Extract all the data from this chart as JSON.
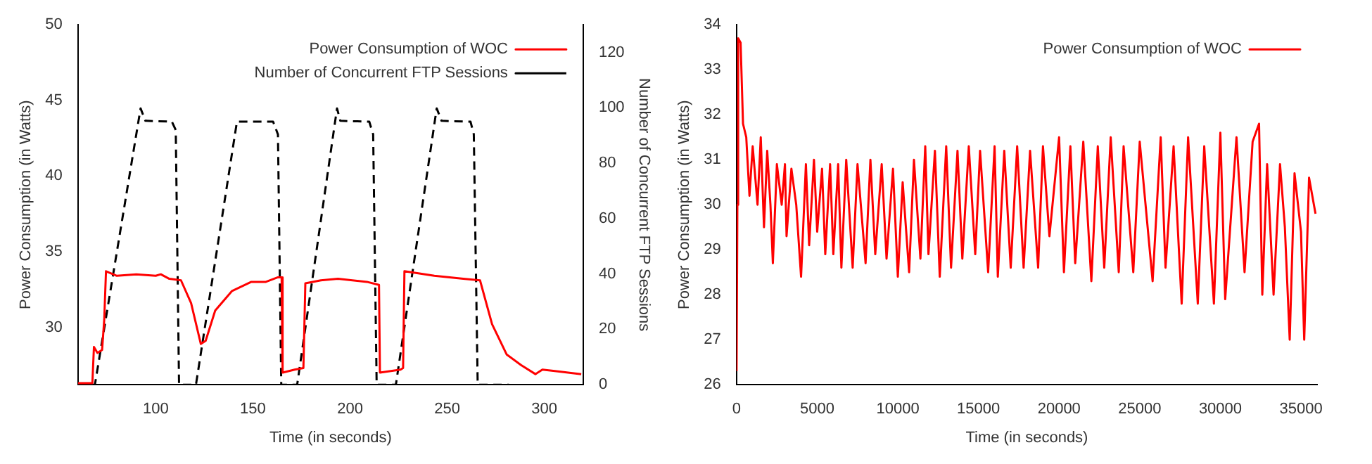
{
  "chart_data": [
    {
      "type": "line",
      "xlabel": "Time (in seconds)",
      "ylabel": "Power Consumption (in Watts)",
      "y2label": "Number of Concurrent FTP Sessions",
      "xlim": [
        60,
        320
      ],
      "xticks": [
        100,
        150,
        200,
        250,
        300
      ],
      "ylim": [
        26.2,
        50
      ],
      "yticks": [
        30,
        35,
        40,
        45,
        50
      ],
      "y2lim": [
        0,
        130
      ],
      "y2ticks": [
        0,
        20,
        40,
        60,
        80,
        100,
        120
      ],
      "grid": false,
      "legend": "top right",
      "marker": "none",
      "series": [
        {
          "name": "Power Consumption of WOC",
          "color": "#ff0000",
          "line_style": "solid",
          "x": [
            60,
            67.4,
            68.2,
            70,
            72.4,
            73.5,
            74.4,
            80,
            90,
            100,
            102.6,
            107,
            113,
            118.2,
            123.2,
            125.7,
            130.6,
            139.3,
            149.2,
            156.7,
            162.9,
            164.8,
            165.3,
            171.5,
            176,
            177,
            185,
            193.8,
            208.7,
            214.9,
            215.4,
            226,
            227.3,
            228,
            243.4,
            258.3,
            266.9,
            273.1,
            280.6,
            288,
            295.4,
            299,
            305.4,
            319
          ],
          "values": [
            26.3,
            26.3,
            28.7,
            28.3,
            28.5,
            30.5,
            33.7,
            33.4,
            33.5,
            33.4,
            33.5,
            33.2,
            33.1,
            31.6,
            28.9,
            29.1,
            31.1,
            32.4,
            33,
            33,
            33.3,
            33.3,
            27,
            27.2,
            27.3,
            32.9,
            33.1,
            33.2,
            33,
            32.8,
            27,
            27.2,
            27.3,
            33.7,
            33.4,
            33.2,
            33.1,
            30.2,
            28.2,
            27.5,
            26.9,
            27.2,
            27.1,
            26.9
          ]
        },
        {
          "name": "Number of Concurrent FTP Sessions",
          "color": "#000000",
          "line_style": "dashed",
          "axis": "y2",
          "x": [
            60,
            68.7,
            92.2,
            94.7,
            108.3,
            110.3,
            112,
            120.7,
            141.8,
            160.4,
            162.9,
            164.6,
            172.8,
            193.3,
            195,
            209.9,
            211.9,
            213.7,
            223.6,
            244.6,
            247.1,
            262,
            263.7,
            265.7,
            281.8
          ],
          "values": [
            0,
            0,
            99.8,
            95.3,
            95,
            92,
            0,
            0,
            95,
            95,
            90.4,
            0,
            0,
            99.8,
            95.3,
            95,
            90.4,
            0,
            0,
            99.8,
            95.3,
            95,
            90.4,
            0,
            0
          ]
        }
      ]
    },
    {
      "type": "line",
      "xlabel": "Time (in seconds)",
      "ylabel": "Power Consumption (in Watts)",
      "xlim": [
        0,
        36000
      ],
      "xticks": [
        0,
        5000,
        10000,
        15000,
        20000,
        25000,
        30000,
        35000
      ],
      "ylim": [
        26,
        34
      ],
      "yticks": [
        26,
        27,
        28,
        29,
        30,
        31,
        32,
        33,
        34
      ],
      "grid": false,
      "legend": "top right",
      "marker": "none",
      "series": [
        {
          "name": "Power Consumption of WOC",
          "color": "#ff0000",
          "line_style": "solid",
          "x": [
            0,
            50,
            100,
            250,
            400,
            600,
            800,
            1000,
            1300,
            1500,
            1700,
            1900,
            2100,
            2250,
            2500,
            2800,
            3000,
            3100,
            3400,
            3700,
            4000,
            4300,
            4500,
            4800,
            5000,
            5300,
            5500,
            5800,
            6000,
            6300,
            6500,
            6800,
            7200,
            7500,
            8000,
            8300,
            8600,
            9000,
            9300,
            9700,
            10000,
            10300,
            10700,
            11000,
            11400,
            11700,
            11900,
            12300,
            12600,
            13000,
            13300,
            13700,
            14000,
            14400,
            14800,
            15100,
            15600,
            16000,
            16200,
            16600,
            17000,
            17400,
            17800,
            18200,
            18700,
            19000,
            19400,
            20000,
            20300,
            20700,
            21000,
            21500,
            22000,
            22400,
            22800,
            23200,
            23700,
            24000,
            24600,
            25000,
            25800,
            26300,
            26600,
            27100,
            27600,
            28000,
            28600,
            29000,
            29600,
            30000,
            30300,
            31000,
            31500,
            32000,
            32400,
            32600,
            32900,
            33300,
            33700,
            34000,
            34300,
            34600,
            35000,
            35200,
            35500,
            35900
          ],
          "values": [
            26.3,
            30,
            33.7,
            33.6,
            31.8,
            31.5,
            30.2,
            31.3,
            30,
            31.5,
            29.5,
            31.2,
            30,
            28.7,
            30.9,
            30,
            30.9,
            29.3,
            30.8,
            30,
            28.4,
            30.9,
            29.1,
            31,
            29.4,
            30.8,
            28.9,
            30.9,
            28.9,
            30.9,
            28.6,
            31,
            28.6,
            30.9,
            28.7,
            31,
            28.9,
            30.9,
            28.8,
            30.8,
            28.4,
            30.5,
            28.5,
            31,
            28.8,
            31.3,
            28.9,
            31.2,
            28.4,
            31.3,
            28.6,
            31.2,
            28.8,
            31.3,
            28.9,
            31.2,
            28.5,
            31.3,
            28.4,
            31.2,
            28.6,
            31.3,
            28.6,
            31.2,
            28.6,
            31.3,
            29.3,
            31.5,
            28.5,
            31.3,
            28.7,
            31.4,
            28.3,
            31.3,
            28.6,
            31.5,
            28.5,
            31.3,
            28.5,
            31.4,
            28.3,
            31.5,
            28.6,
            31.3,
            27.8,
            31.5,
            27.8,
            31.3,
            27.8,
            31.6,
            27.9,
            31.5,
            28.5,
            31.4,
            31.8,
            28,
            30.9,
            28,
            30.9,
            29.5,
            27,
            30.7,
            29.4,
            27,
            30.6,
            29.8
          ]
        }
      ]
    }
  ]
}
